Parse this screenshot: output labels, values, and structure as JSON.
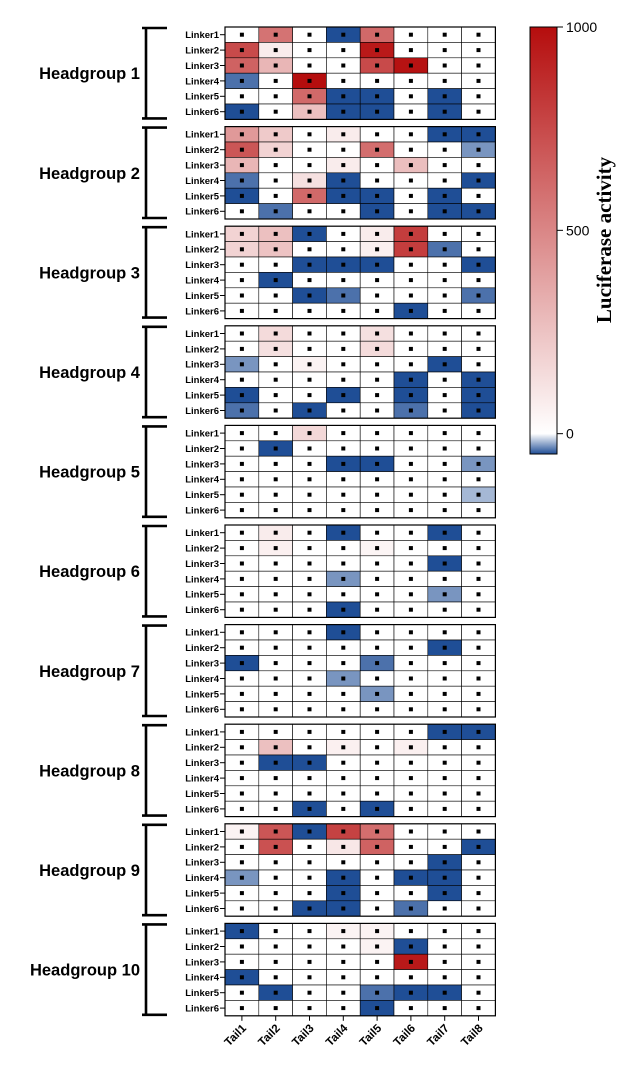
{
  "chart_data": {
    "type": "heatmap",
    "group_labels": [
      "Headgroup 1",
      "Headgroup 2",
      "Headgroup 3",
      "Headgroup 4",
      "Headgroup 5",
      "Headgroup 6",
      "Headgroup 7",
      "Headgroup 8",
      "Headgroup 9",
      "Headgroup 10"
    ],
    "row_labels": [
      "Linker1",
      "Linker2",
      "Linker3",
      "Linker4",
      "Linker5",
      "Linker6"
    ],
    "column_labels": [
      "Tail1",
      "Tail2",
      "Tail3",
      "Tail4",
      "Tail5",
      "Tail6",
      "Tail7",
      "Tail8"
    ],
    "colorbar": {
      "title": "Luciferase activity",
      "min": -50,
      "max": 1000,
      "ticks": [
        {
          "value": 0,
          "label": "0"
        },
        {
          "value": 500,
          "label": "500"
        },
        {
          "value": 1000,
          "label": "1000"
        }
      ],
      "color_low": "#1f4e96",
      "color_zero": "#ffffff",
      "color_high": "#b50d0d"
    },
    "cell_marker": "square dot in every cell",
    "values": [
      [
        [
          0,
          580,
          0,
          -150,
          620,
          0,
          0,
          0
        ],
        [
          750,
          80,
          0,
          0,
          950,
          0,
          0,
          0
        ],
        [
          650,
          300,
          0,
          0,
          750,
          980,
          0,
          0
        ],
        [
          -40,
          0,
          1000,
          0,
          0,
          0,
          0,
          0
        ],
        [
          0,
          0,
          620,
          -80,
          -90,
          0,
          -140,
          0
        ],
        [
          -130,
          0,
          260,
          -60,
          -90,
          0,
          -60,
          0
        ]
      ],
      [
        [
          420,
          220,
          0,
          80,
          0,
          0,
          -180,
          -60
        ],
        [
          700,
          180,
          0,
          0,
          600,
          0,
          0,
          -30
        ],
        [
          300,
          0,
          0,
          80,
          0,
          270,
          0,
          0
        ],
        [
          -40,
          0,
          130,
          -180,
          0,
          0,
          0,
          -120
        ],
        [
          -120,
          0,
          620,
          -60,
          -60,
          0,
          -70,
          0
        ],
        [
          0,
          -40,
          0,
          0,
          -60,
          0,
          -140,
          -70
        ]
      ],
      [
        [
          180,
          260,
          -50,
          0,
          80,
          800,
          0,
          0
        ],
        [
          180,
          250,
          0,
          0,
          60,
          800,
          -40,
          0
        ],
        [
          0,
          0,
          -100,
          -200,
          -100,
          0,
          0,
          -50
        ],
        [
          0,
          -60,
          0,
          0,
          0,
          0,
          0,
          0
        ],
        [
          0,
          0,
          -80,
          -40,
          0,
          0,
          0,
          -40
        ],
        [
          0,
          0,
          0,
          0,
          0,
          -240,
          0,
          0
        ]
      ],
      [
        [
          0,
          150,
          0,
          0,
          130,
          0,
          0,
          0
        ],
        [
          0,
          130,
          0,
          0,
          150,
          0,
          0,
          0
        ],
        [
          -30,
          0,
          50,
          0,
          0,
          0,
          -50,
          0
        ],
        [
          0,
          0,
          0,
          0,
          0,
          -60,
          0,
          -120
        ],
        [
          -100,
          0,
          0,
          -160,
          0,
          -90,
          0,
          -70
        ],
        [
          -40,
          0,
          -50,
          0,
          0,
          -40,
          0,
          -170
        ]
      ],
      [
        [
          0,
          0,
          160,
          0,
          0,
          0,
          0,
          0
        ],
        [
          0,
          -100,
          0,
          0,
          0,
          0,
          0,
          0
        ],
        [
          0,
          0,
          0,
          -60,
          -70,
          0,
          0,
          -30
        ],
        [
          0,
          0,
          0,
          0,
          0,
          0,
          0,
          0
        ],
        [
          0,
          0,
          0,
          0,
          0,
          0,
          0,
          -20
        ],
        [
          0,
          0,
          0,
          0,
          0,
          0,
          0,
          0
        ]
      ],
      [
        [
          0,
          80,
          0,
          -50,
          0,
          0,
          -90,
          0
        ],
        [
          0,
          60,
          0,
          0,
          40,
          0,
          0,
          0
        ],
        [
          0,
          0,
          0,
          0,
          0,
          0,
          -110,
          0
        ],
        [
          0,
          0,
          0,
          -30,
          0,
          0,
          0,
          0
        ],
        [
          0,
          0,
          0,
          0,
          0,
          0,
          -30,
          0
        ],
        [
          0,
          0,
          0,
          -80,
          0,
          0,
          0,
          0
        ]
      ],
      [
        [
          0,
          0,
          0,
          -110,
          0,
          0,
          0,
          0
        ],
        [
          0,
          0,
          0,
          0,
          0,
          0,
          -70,
          0
        ],
        [
          -110,
          0,
          0,
          0,
          -40,
          0,
          0,
          0
        ],
        [
          0,
          0,
          0,
          -30,
          0,
          0,
          0,
          0
        ],
        [
          0,
          0,
          0,
          0,
          -30,
          0,
          0,
          0
        ],
        [
          0,
          0,
          0,
          0,
          0,
          0,
          0,
          0
        ]
      ],
      [
        [
          0,
          0,
          0,
          0,
          0,
          0,
          -60,
          -60
        ],
        [
          0,
          260,
          0,
          60,
          0,
          60,
          0,
          0
        ],
        [
          0,
          -60,
          -120,
          0,
          0,
          0,
          0,
          0
        ],
        [
          0,
          0,
          0,
          0,
          0,
          0,
          0,
          0
        ],
        [
          0,
          0,
          0,
          0,
          0,
          0,
          0,
          0
        ],
        [
          0,
          0,
          -90,
          0,
          -140,
          0,
          0,
          0
        ]
      ],
      [
        [
          50,
          700,
          -170,
          780,
          600,
          0,
          0,
          0
        ],
        [
          0,
          720,
          0,
          100,
          650,
          0,
          0,
          -100
        ],
        [
          0,
          0,
          0,
          0,
          0,
          0,
          -50,
          0
        ],
        [
          -30,
          0,
          0,
          -70,
          0,
          -110,
          -60,
          0
        ],
        [
          0,
          0,
          0,
          -210,
          0,
          0,
          -100,
          0
        ],
        [
          0,
          0,
          -80,
          -300,
          0,
          -40,
          0,
          0
        ]
      ],
      [
        [
          -160,
          0,
          0,
          50,
          50,
          0,
          0,
          0
        ],
        [
          0,
          0,
          0,
          0,
          50,
          -160,
          0,
          0
        ],
        [
          0,
          0,
          0,
          0,
          0,
          950,
          0,
          0
        ],
        [
          -60,
          0,
          0,
          0,
          0,
          0,
          0,
          0
        ],
        [
          0,
          -150,
          0,
          0,
          -40,
          -100,
          -90,
          0
        ],
        [
          0,
          0,
          0,
          0,
          -80,
          0,
          0,
          0
        ]
      ]
    ]
  }
}
